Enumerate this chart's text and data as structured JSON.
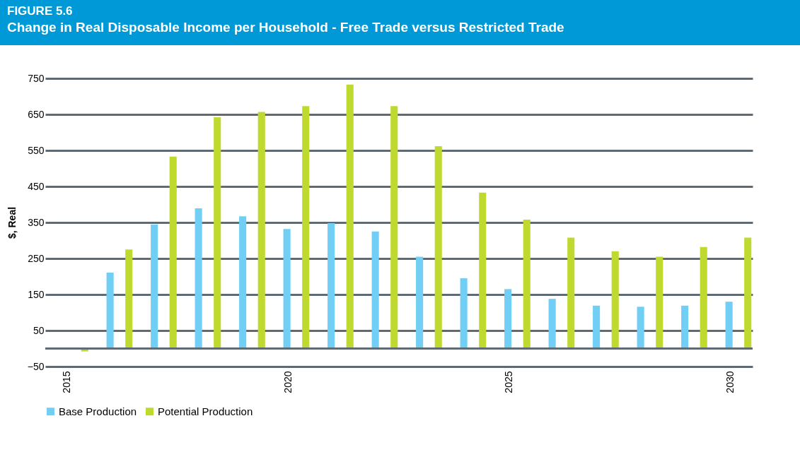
{
  "chart_data": {
    "type": "bar",
    "title": "FIGURE  5.6",
    "subtitle": "Change in Real Disposable Income per Household - Free Trade versus Restricted Trade",
    "ylabel": "$, Real",
    "categories": [
      "2015",
      null,
      null,
      null,
      null,
      "2020",
      null,
      null,
      null,
      null,
      "2025",
      null,
      null,
      null,
      null,
      "2030"
    ],
    "series": [
      {
        "name": "Base Production",
        "color": "#71cff5",
        "values": [
          null,
          211,
          344,
          389,
          367,
          332,
          348,
          325,
          255,
          195,
          165,
          138,
          119,
          116,
          119,
          130
        ]
      },
      {
        "name": "Potential Production",
        "color": "#c0d92f",
        "values": [
          -8,
          275,
          533,
          642,
          657,
          673,
          733,
          673,
          562,
          433,
          358,
          308,
          270,
          255,
          282,
          308
        ]
      }
    ],
    "ylim": [
      -50,
      750
    ],
    "yticks": [
      -50,
      50,
      150,
      250,
      350,
      450,
      550,
      650,
      750
    ],
    "grid": "y",
    "legend": "bottom",
    "ref_lines": [
      {
        "axis": "y",
        "value": 0,
        "color": "#5f6a72"
      }
    ]
  }
}
